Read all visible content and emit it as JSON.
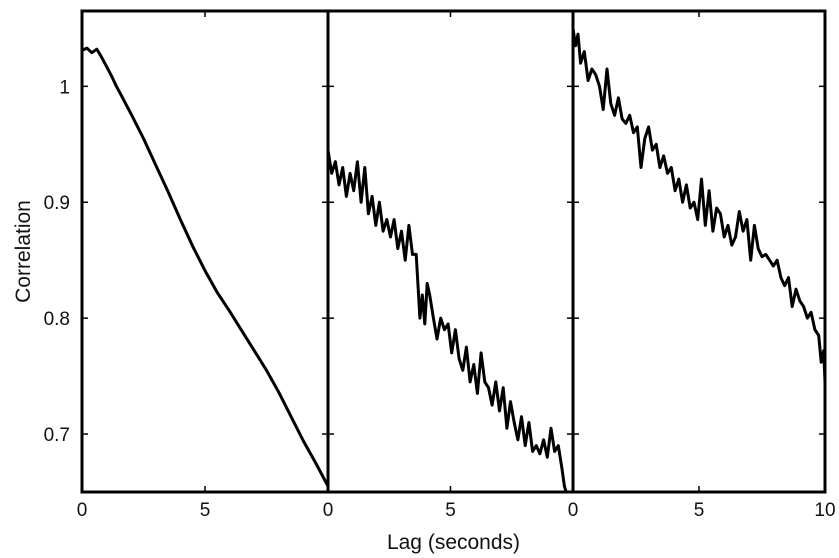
{
  "chart_data": {
    "type": "line",
    "xlabel": "Lag (seconds)",
    "ylabel": "Correlation",
    "shared_y_axis": true,
    "ylim": [
      0.65,
      1.065
    ],
    "yticks": [
      0.7,
      0.8,
      0.9,
      1
    ],
    "ytick_labels": [
      "0.7",
      "0.8",
      "0.9",
      "1"
    ],
    "grid": false,
    "legend": "none",
    "line_color": "#000000",
    "panels": [
      {
        "xlim": [
          0,
          10
        ],
        "xticks": [
          0,
          5
        ],
        "xtick_labels": [
          "0",
          "5"
        ],
        "series": [
          {
            "x": [
              0,
              0.2,
              0.4,
              0.6,
              0.8,
              1.0,
              1.2,
              1.4,
              1.6,
              1.8,
              2.0,
              2.5,
              3.0,
              3.5,
              4.0,
              4.5,
              5.0,
              5.5,
              6.0,
              6.5,
              7.0,
              7.5,
              8.0,
              8.5,
              9.0,
              9.5,
              10.0
            ],
            "y": [
              1.031,
              1.033,
              1.029,
              1.032,
              1.025,
              1.017,
              1.009,
              1.0,
              0.992,
              0.984,
              0.976,
              0.955,
              0.932,
              0.909,
              0.885,
              0.862,
              0.841,
              0.822,
              0.806,
              0.789,
              0.772,
              0.755,
              0.736,
              0.715,
              0.694,
              0.675,
              0.655
            ]
          }
        ]
      },
      {
        "xlim": [
          0,
          10
        ],
        "xticks": [
          0,
          5
        ],
        "xtick_labels": [
          "0",
          "5"
        ],
        "series": [
          {
            "x": [
              0,
              0.15,
              0.3,
              0.45,
              0.6,
              0.75,
              0.9,
              1.05,
              1.2,
              1.35,
              1.5,
              1.65,
              1.8,
              1.95,
              2.1,
              2.25,
              2.4,
              2.55,
              2.7,
              2.85,
              3.0,
              3.15,
              3.3,
              3.45,
              3.6,
              3.75,
              3.85,
              3.95,
              4.05,
              4.15,
              4.3,
              4.45,
              4.6,
              4.75,
              4.9,
              5.05,
              5.2,
              5.35,
              5.5,
              5.65,
              5.8,
              5.95,
              6.1,
              6.25,
              6.4,
              6.55,
              6.7,
              6.85,
              7.0,
              7.15,
              7.3,
              7.45,
              7.6,
              7.75,
              7.9,
              8.05,
              8.2,
              8.35,
              8.5,
              8.65,
              8.8,
              8.95,
              9.1,
              9.25,
              9.4,
              9.55,
              9.65,
              9.75
            ],
            "y": [
              0.945,
              0.925,
              0.935,
              0.915,
              0.93,
              0.905,
              0.925,
              0.91,
              0.935,
              0.9,
              0.93,
              0.89,
              0.905,
              0.88,
              0.9,
              0.875,
              0.885,
              0.87,
              0.885,
              0.86,
              0.875,
              0.85,
              0.88,
              0.855,
              0.855,
              0.8,
              0.82,
              0.795,
              0.83,
              0.82,
              0.8,
              0.782,
              0.8,
              0.79,
              0.795,
              0.77,
              0.79,
              0.765,
              0.755,
              0.775,
              0.745,
              0.76,
              0.735,
              0.77,
              0.745,
              0.74,
              0.725,
              0.745,
              0.72,
              0.74,
              0.705,
              0.728,
              0.71,
              0.695,
              0.715,
              0.69,
              0.71,
              0.685,
              0.69,
              0.683,
              0.695,
              0.68,
              0.705,
              0.685,
              0.69,
              0.67,
              0.655,
              0.648
            ]
          }
        ]
      },
      {
        "xlim": [
          0,
          10
        ],
        "xticks": [
          0,
          5,
          10
        ],
        "xtick_labels": [
          "0",
          "5",
          "10"
        ],
        "series": [
          {
            "x": [
              0,
              0.1,
              0.2,
              0.3,
              0.45,
              0.6,
              0.75,
              0.9,
              1.05,
              1.2,
              1.35,
              1.5,
              1.65,
              1.8,
              1.95,
              2.1,
              2.25,
              2.4,
              2.55,
              2.7,
              2.85,
              3.0,
              3.15,
              3.3,
              3.45,
              3.6,
              3.75,
              3.9,
              4.05,
              4.2,
              4.35,
              4.5,
              4.65,
              4.8,
              4.95,
              5.1,
              5.25,
              5.4,
              5.55,
              5.7,
              5.85,
              6.0,
              6.15,
              6.3,
              6.45,
              6.6,
              6.75,
              6.9,
              7.05,
              7.2,
              7.35,
              7.5,
              7.65,
              7.8,
              7.95,
              8.1,
              8.25,
              8.4,
              8.55,
              8.7,
              8.85,
              9.0,
              9.15,
              9.3,
              9.45,
              9.6,
              9.75,
              9.85,
              9.95,
              10.0
            ],
            "y": [
              1.05,
              1.035,
              1.045,
              1.02,
              1.03,
              1.005,
              1.015,
              1.01,
              1.0,
              0.98,
              1.015,
              0.985,
              0.975,
              0.99,
              0.972,
              0.968,
              0.975,
              0.96,
              0.965,
              0.93,
              0.955,
              0.965,
              0.945,
              0.95,
              0.93,
              0.94,
              0.925,
              0.93,
              0.91,
              0.92,
              0.9,
              0.915,
              0.895,
              0.9,
              0.885,
              0.92,
              0.88,
              0.91,
              0.875,
              0.895,
              0.89,
              0.87,
              0.88,
              0.863,
              0.87,
              0.892,
              0.875,
              0.885,
              0.85,
              0.88,
              0.86,
              0.853,
              0.855,
              0.85,
              0.845,
              0.85,
              0.835,
              0.828,
              0.835,
              0.81,
              0.825,
              0.815,
              0.81,
              0.8,
              0.805,
              0.79,
              0.785,
              0.762,
              0.772,
              0.745
            ]
          }
        ]
      }
    ]
  }
}
